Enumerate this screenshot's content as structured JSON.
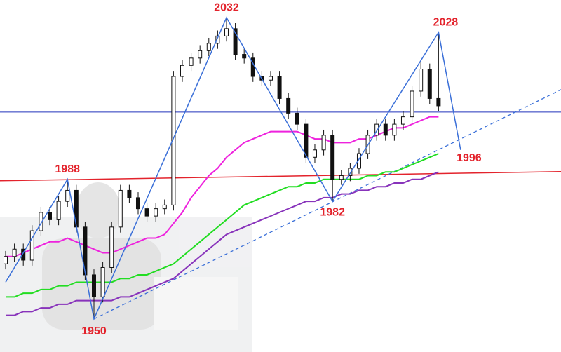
{
  "chart_data": {
    "type": "candlestick",
    "xlim": [
      -0.635,
      62.86
    ],
    "ylim": [
      1941,
      2036.8
    ],
    "open": [
      1965,
      1967,
      1969,
      1966,
      1974,
      1979,
      1977,
      1982,
      1985,
      1975,
      1962,
      1956,
      1964,
      1975,
      1985,
      1983,
      1980,
      1978,
      1980,
      1981,
      2016,
      2019,
      2021,
      2023,
      2025,
      2027,
      2029,
      2022,
      2021,
      2016,
      2015,
      2016,
      2010,
      2006,
      2003,
      1994,
      1996,
      2000,
      1988,
      1989,
      1991,
      1995,
      2000,
      2003,
      2000,
      2003,
      2005,
      2012,
      2018,
      2010
    ],
    "high": [
      1968.5,
      1970.5,
      1970.5,
      1975.5,
      1980.5,
      1980.5,
      1983.5,
      1988,
      1986.5,
      1976.5,
      1963.5,
      1965.5,
      1976.5,
      1986.5,
      1986.5,
      1984.5,
      1981.5,
      1981.5,
      1982.5,
      2017.5,
      2020.5,
      2022.5,
      2024.5,
      2026.5,
      2028.5,
      2032,
      2030.5,
      2023.5,
      2022.5,
      2017.5,
      2017.5,
      2017.5,
      2011.5,
      2007.5,
      2004.5,
      1997.5,
      2001.5,
      2001.5,
      1990.5,
      1992.5,
      1996.5,
      2001.5,
      2004.5,
      2004.5,
      2004.5,
      2006.5,
      2013.5,
      2020,
      2019.5,
      2028
    ],
    "low": [
      1963.5,
      1965.5,
      1964.5,
      1964.5,
      1972.5,
      1975.5,
      1975.5,
      1980.5,
      1973.5,
      1960.5,
      1950,
      1954.5,
      1962.5,
      1973.5,
      1981.5,
      1978.5,
      1976.5,
      1976.5,
      1978.5,
      1979.5,
      2014.5,
      2017.5,
      2019.5,
      2021.5,
      2023.5,
      2025.5,
      2020.5,
      2019.5,
      2014.5,
      2013.5,
      2013.5,
      2008.5,
      2004.5,
      2001.5,
      1992.5,
      1992.5,
      1994.5,
      1982,
      1986.5,
      1987.5,
      1989.5,
      1993.5,
      1998.5,
      1998.5,
      1998.5,
      2001.5,
      2003.5,
      2010.5,
      2008.5,
      2006.5
    ],
    "close": [
      1967,
      1969,
      1966,
      1974,
      1979,
      1977,
      1982,
      1985,
      1975,
      1962,
      1956,
      1964,
      1975,
      1985,
      1983,
      1980,
      1978,
      1980,
      1981,
      2016,
      2019,
      2021,
      2023,
      2025,
      2027,
      2029,
      2022,
      2021,
      2016,
      2015,
      2016,
      2010,
      2006,
      2003,
      1994,
      1996,
      2000,
      1988,
      1989,
      1991,
      1995,
      2000,
      2003,
      2000,
      2003,
      2005,
      2012,
      2018,
      2010,
      2008
    ],
    "candle_color": "#111111",
    "moving_averages": [
      {
        "color": "#ee22dd",
        "values": [
          1967,
          1967,
          1968,
          1969,
          1970,
          1971,
          1971,
          1972,
          1971,
          1970,
          1969,
          1968,
          1968,
          1969,
          1970,
          1971,
          1972,
          1972,
          1973,
          1976,
          1979,
          1983,
          1986,
          1989,
          1991,
          1994,
          1996,
          1998,
          1999,
          2000,
          2001,
          2001,
          2001,
          2001,
          2000,
          1999,
          1999,
          1998,
          1998,
          1998,
          1999,
          1999,
          2000,
          2001,
          2002,
          2002,
          2003,
          2004,
          2005,
          2005
        ]
      },
      {
        "color": "#22dd22",
        "values": [
          1956,
          1956,
          1957,
          1957,
          1958,
          1958,
          1959,
          1959,
          1960,
          1960,
          1960,
          1960,
          1960,
          1961,
          1961,
          1962,
          1962,
          1963,
          1964,
          1965,
          1967,
          1969,
          1971,
          1973,
          1975,
          1977,
          1979,
          1981,
          1982,
          1983,
          1984,
          1985,
          1986,
          1986,
          1987,
          1987,
          1988,
          1988,
          1988,
          1988,
          1988,
          1989,
          1989,
          1990,
          1990,
          1991,
          1992,
          1993,
          1994,
          1995
        ]
      },
      {
        "color": "#8833bb",
        "values": [
          1951,
          1951,
          1952,
          1952,
          1953,
          1953,
          1954,
          1954,
          1955,
          1955,
          1955,
          1955,
          1955,
          1956,
          1956,
          1957,
          1958,
          1959,
          1960,
          1961,
          1963,
          1965,
          1967,
          1969,
          1971,
          1973,
          1974,
          1975,
          1976,
          1977,
          1978,
          1979,
          1980,
          1981,
          1982,
          1982,
          1983,
          1983,
          1984,
          1984,
          1985,
          1985,
          1986,
          1986,
          1987,
          1987,
          1988,
          1988,
          1989,
          1990
        ]
      }
    ],
    "zigzag": {
      "color": "#3a6fd8",
      "x": [
        0,
        7,
        10,
        25,
        37,
        49,
        51.5
      ],
      "values": [
        1960,
        1988,
        1950,
        2032,
        1982,
        2028,
        1996
      ]
    },
    "hline": {
      "color": "#2233bb",
      "value": 2006.3
    },
    "red_line": {
      "color": "#e3232c",
      "values": [
        1987.6,
        1990.1
      ]
    },
    "trendline": {
      "color": "#3a6fd8",
      "x": [
        10,
        62.86
      ],
      "values": [
        1950,
        2012.4
      ]
    }
  }
}
